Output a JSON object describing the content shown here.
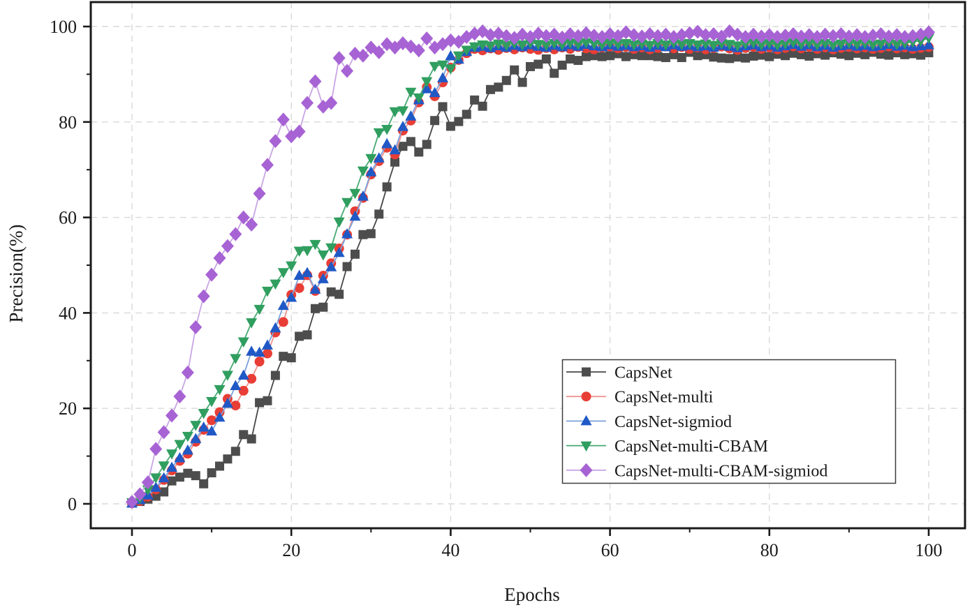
{
  "figure": {
    "background": "#ffffff",
    "border_color": "#1a1a1a",
    "grid_color": "#d9d9d9"
  },
  "chart_data": {
    "type": "line",
    "title": "",
    "xlabel": "Epochs",
    "ylabel": "Precision(%)",
    "x_start": 0,
    "x_step": 1,
    "xlim": [
      -5,
      105
    ],
    "ylim": [
      -5,
      105
    ],
    "x_ticks": [
      0,
      20,
      40,
      60,
      80,
      100
    ],
    "y_ticks": [
      0,
      20,
      40,
      60,
      80,
      100
    ],
    "x_minor_ticks": [
      10,
      30,
      50,
      70,
      90
    ],
    "y_minor_ticks": [
      10,
      30,
      50,
      70,
      90
    ],
    "grid": "dashed-major",
    "legend_position": "center-right",
    "series": [
      {
        "name": "CapsNet",
        "marker": "square",
        "color": "#4d4d4d",
        "line_color": "#474747",
        "values": [
          0.2,
          0.5,
          1.0,
          1.6,
          2.5,
          4.8,
          5.6,
          6.4,
          5.9,
          4.2,
          6.5,
          7.9,
          9.4,
          11.0,
          14.5,
          13.6,
          21.2,
          21.6,
          26.9,
          30.9,
          30.6,
          35.1,
          35.4,
          40.9,
          41.2,
          44.4,
          43.9,
          49.7,
          52.3,
          56.4,
          56.6,
          60.7,
          66.4,
          71.6,
          74.9,
          75.9,
          73.7,
          75.3,
          80.3,
          83.2,
          79.1,
          80.1,
          81.6,
          84.6,
          83.3,
          86.8,
          87.3,
          88.7,
          90.9,
          88.3,
          91.6,
          92.1,
          93.2,
          90.2,
          91.9,
          93.2,
          92.9,
          93.7,
          93.9,
          93.7,
          93.9,
          94.3,
          93.7,
          94.1,
          93.9,
          93.9,
          93.7,
          93.5,
          94.1,
          93.5,
          94.6,
          93.9,
          94.1,
          93.6,
          93.4,
          93.3,
          93.6,
          93.4,
          93.8,
          94.0,
          93.7,
          94.2,
          93.9,
          94.4,
          94.1,
          93.8,
          94.3,
          94.0,
          94.5,
          94.2,
          93.9,
          94.4,
          94.1,
          94.6,
          94.2,
          94.0,
          94.5,
          94.1,
          94.3,
          94.0,
          94.5
        ]
      },
      {
        "name": "CapsNet-multi",
        "marker": "circle",
        "color": "#e83e36",
        "line_color": "#f0938f",
        "values": [
          0.1,
          0.6,
          1.5,
          3.0,
          5.0,
          7.0,
          9.0,
          10.5,
          13.0,
          15.5,
          17.5,
          19.2,
          22.0,
          20.6,
          23.7,
          26.2,
          29.8,
          31.5,
          35.9,
          38.1,
          43.8,
          45.2,
          47.9,
          44.6,
          47.8,
          50.4,
          53.5,
          56.4,
          61.3,
          64.1,
          69.0,
          71.8,
          74.6,
          73.2,
          78.2,
          80.3,
          84.1,
          87.3,
          85.4,
          88.3,
          91.4,
          93.0,
          94.4,
          95.3,
          95.0,
          95.4,
          95.1,
          95.5,
          95.2,
          95.6,
          95.3,
          95.1,
          95.5,
          95.2,
          95.6,
          95.3,
          95.7,
          95.4,
          95.2,
          95.6,
          95.8,
          95.4,
          95.7,
          95.3,
          95.6,
          95.2,
          95.5,
          95.8,
          95.4,
          95.7,
          95.3,
          95.6,
          95.2,
          95.5,
          95.8,
          95.4,
          95.1,
          95.5,
          95.7,
          95.3,
          95.6,
          95.2,
          95.5,
          95.8,
          95.4,
          95.7,
          95.3,
          95.6,
          95.2,
          95.5,
          95.7,
          95.4,
          95.6,
          95.3,
          95.5,
          95.8,
          95.4,
          95.6,
          95.3,
          95.5,
          95.7
        ]
      },
      {
        "name": "CapsNet-sigmiod",
        "marker": "triangle-up",
        "color": "#2059c6",
        "line_color": "#7ba1dc",
        "values": [
          0.1,
          0.8,
          1.8,
          3.4,
          5.4,
          7.6,
          9.6,
          11.2,
          13.6,
          16.0,
          15.2,
          18.1,
          21.0,
          24.7,
          26.9,
          31.9,
          31.7,
          33.2,
          36.8,
          41.5,
          43.2,
          47.8,
          48.4,
          44.9,
          47.1,
          49.6,
          52.6,
          56.5,
          60.2,
          64.4,
          69.5,
          72.4,
          75.4,
          74.1,
          79.0,
          81.2,
          84.6,
          86.9,
          86.1,
          89.2,
          93.8,
          93.1,
          94.7,
          95.6,
          95.8,
          95.5,
          95.9,
          95.6,
          96.0,
          95.7,
          96.1,
          95.8,
          95.6,
          96.0,
          95.7,
          96.1,
          95.8,
          96.2,
          95.9,
          95.7,
          96.1,
          95.8,
          96.0,
          95.7,
          95.9,
          95.6,
          96.0,
          95.7,
          96.1,
          95.8,
          96.0,
          95.7,
          95.9,
          95.6,
          96.0,
          95.8,
          95.5,
          95.9,
          96.1,
          95.7,
          96.0,
          95.6,
          95.9,
          96.2,
          95.8,
          96.1,
          95.7,
          96.0,
          95.6,
          95.9,
          96.1,
          95.8,
          96.0,
          95.7,
          95.9,
          96.2,
          95.8,
          96.0,
          95.7,
          95.9,
          96.1
        ]
      },
      {
        "name": "CapsNet-multi-CBAM",
        "marker": "triangle-down",
        "color": "#2f9e5f",
        "line_color": "#46a973",
        "values": [
          0.3,
          1.2,
          3.0,
          5.5,
          8.0,
          10.5,
          12.5,
          14.2,
          16.5,
          19.0,
          21.5,
          24.0,
          27.0,
          30.5,
          34.0,
          38.0,
          40.8,
          44.6,
          46.1,
          48.5,
          49.9,
          53.0,
          53.1,
          54.4,
          52.2,
          53.7,
          59.1,
          63.2,
          65.1,
          69.8,
          72.4,
          77.8,
          78.5,
          82.2,
          82.4,
          86.3,
          85.1,
          88.5,
          91.7,
          92.0,
          91.2,
          93.9,
          95.1,
          95.8,
          96.2,
          96.0,
          96.4,
          96.1,
          96.5,
          96.2,
          96.6,
          96.3,
          96.1,
          96.5,
          96.2,
          96.6,
          96.3,
          96.7,
          96.4,
          96.2,
          96.6,
          96.3,
          96.5,
          96.2,
          96.4,
          96.1,
          96.5,
          96.2,
          96.6,
          96.3,
          96.5,
          96.2,
          96.4,
          96.1,
          96.5,
          96.3,
          96.0,
          96.4,
          96.6,
          96.2,
          96.5,
          96.1,
          96.4,
          96.7,
          96.3,
          96.6,
          96.2,
          96.5,
          96.1,
          96.4,
          96.6,
          96.3,
          96.5,
          96.2,
          96.4,
          96.7,
          96.3,
          96.5,
          96.8,
          97.0,
          97.6
        ]
      },
      {
        "name": "CapsNet-multi-CBAM-sigmiod",
        "marker": "diamond",
        "color": "#a763d4",
        "line_color": "#c9a5e4",
        "values": [
          0.4,
          2.0,
          4.5,
          11.5,
          15.0,
          18.5,
          22.5,
          27.5,
          37.0,
          43.5,
          48.0,
          51.5,
          54.0,
          56.5,
          60.0,
          58.5,
          65.0,
          71.0,
          76.0,
          80.5,
          77.0,
          78.0,
          84.0,
          88.5,
          83.2,
          84.0,
          93.4,
          90.7,
          94.3,
          93.9,
          95.6,
          94.6,
          96.3,
          95.6,
          96.5,
          95.8,
          95.0,
          97.5,
          95.6,
          96.3,
          97.1,
          96.8,
          97.8,
          98.5,
          99.0,
          98.2,
          98.5,
          98.0,
          97.6,
          98.3,
          97.8,
          98.5,
          98.0,
          98.3,
          97.7,
          98.4,
          98.0,
          98.6,
          98.1,
          97.8,
          98.4,
          98.0,
          98.8,
          98.2,
          97.9,
          98.4,
          98.0,
          98.3,
          97.8,
          98.2,
          98.6,
          98.9,
          98.2,
          98.4,
          97.9,
          99.0,
          98.3,
          97.8,
          98.3,
          97.9,
          98.2,
          97.8,
          98.1,
          98.4,
          97.9,
          98.2,
          97.8,
          98.3,
          98.0,
          98.4,
          97.9,
          98.2,
          97.8,
          98.1,
          98.4,
          97.9,
          98.2,
          97.8,
          98.0,
          98.3,
          98.8
        ]
      }
    ]
  }
}
